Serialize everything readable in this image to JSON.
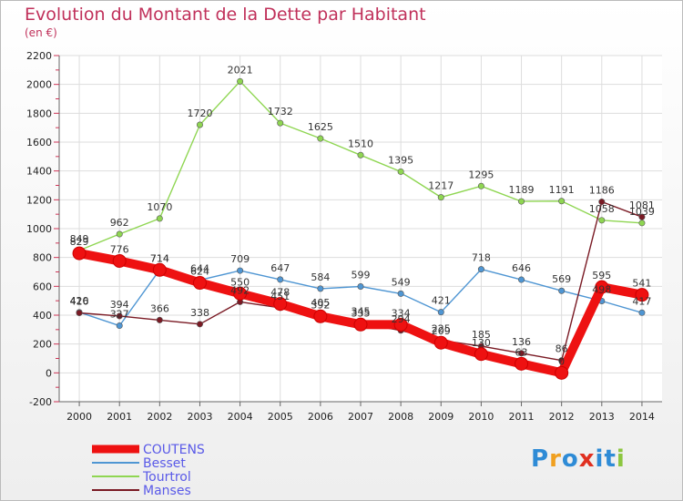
{
  "title": "Evolution du Montant de la Dette par Habitant",
  "subtitle": "(en €)",
  "logo": {
    "text": "Proxiti",
    "colors": [
      "#2e8bd6",
      "#f0a020",
      "#2e8bd6",
      "#e03020",
      "#2e8bd6",
      "#2e8bd6",
      "#8cc63f"
    ]
  },
  "chart_data": {
    "type": "line",
    "x": [
      "2000",
      "2001",
      "2002",
      "2003",
      "2004",
      "2005",
      "2006",
      "2007",
      "2008",
      "2009",
      "2010",
      "2011",
      "2012",
      "2013",
      "2014"
    ],
    "ylim": [
      -200,
      2200
    ],
    "yticks": [
      -200,
      0,
      200,
      400,
      600,
      800,
      1000,
      1200,
      1400,
      1600,
      1800,
      2000,
      2200
    ],
    "grid": true,
    "legend": "bottom-left",
    "series": [
      {
        "name": "COUTENS",
        "color": "#ee1111",
        "values": [
          829,
          776,
          714,
          624,
          550,
          478,
          392,
          335,
          334,
          209,
          130,
          63,
          0,
          595,
          541
        ],
        "labels": [
          "829",
          "776",
          "714",
          "624",
          "550",
          "478",
          "392",
          "335",
          "334",
          "209",
          "130",
          "63",
          "0",
          "595",
          "541"
        ]
      },
      {
        "name": "Besset",
        "color": "#4f96d3",
        "values": [
          420,
          327,
          714,
          644,
          709,
          647,
          584,
          599,
          549,
          421,
          718,
          646,
          569,
          498,
          417
        ],
        "labels": [
          "420",
          "327",
          "714",
          "644",
          "709",
          "647",
          "584",
          "599",
          "549",
          "421",
          "718",
          "646",
          "569",
          "498",
          "417"
        ]
      },
      {
        "name": "Tourtrol",
        "color": "#8fd652",
        "values": [
          849,
          962,
          1070,
          1720,
          2021,
          1732,
          1625,
          1510,
          1395,
          1217,
          1295,
          1189,
          1191,
          1058,
          1039
        ],
        "labels": [
          "849",
          "962",
          "1070",
          "1720",
          "2021",
          "1732",
          "1625",
          "1510",
          "1395",
          "1217",
          "1295",
          "1189",
          "1191",
          "1058",
          "1039"
        ]
      },
      {
        "name": "Manses",
        "color": "#7a1a24",
        "values": [
          416,
          394,
          366,
          338,
          492,
          451,
          405,
          345,
          294,
          225,
          185,
          136,
          86,
          1186,
          1081
        ],
        "labels": [
          "416",
          "394",
          "366",
          "338",
          "492",
          "451",
          "405",
          "345",
          "294",
          "225",
          "185",
          "136",
          "86",
          "1186",
          "1081"
        ]
      }
    ]
  }
}
